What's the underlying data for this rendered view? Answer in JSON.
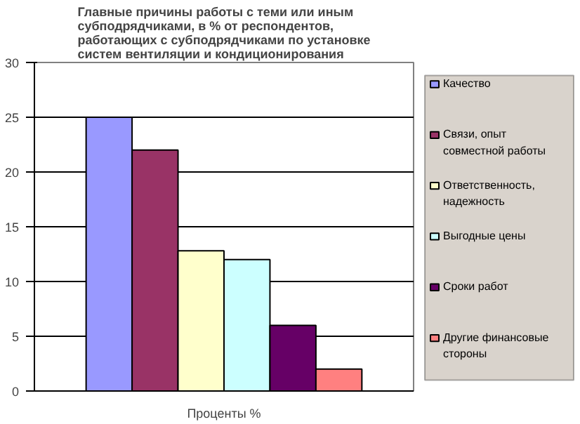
{
  "chart_data": {
    "type": "bar",
    "title": "Главные причины работы с теми или иным субподрядчиками, в % от респондентов, работающих с субподрядчиками по установке систем вентиляции и кондиционирования",
    "categories": [
      "Проценты %"
    ],
    "series": [
      {
        "name": "Качество",
        "color": "#9999ff",
        "values": [
          25
        ]
      },
      {
        "name": "Связи, опыт совместной работы",
        "color": "#993366",
        "values": [
          22
        ]
      },
      {
        "name": "Ответственность, надежность",
        "color": "#ffffcc",
        "values": [
          12.8
        ]
      },
      {
        "name": "Выгодные цены",
        "color": "#ccffff",
        "values": [
          12
        ]
      },
      {
        "name": "Сроки работ",
        "color": "#660066",
        "values": [
          6
        ]
      },
      {
        "name": "Другие финансовые стороны",
        "color": "#ff8080",
        "values": [
          2
        ]
      }
    ],
    "ylim": [
      0,
      30
    ],
    "yticks": [
      0,
      5,
      10,
      15,
      20,
      25,
      30
    ],
    "grid": "y",
    "legend": "right"
  }
}
